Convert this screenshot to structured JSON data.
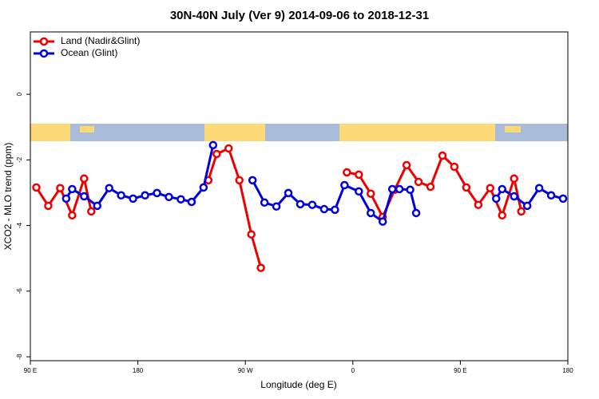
{
  "chart_data": {
    "type": "line",
    "title": "30N-40N July (Ver 9)   2014-09-06 to 2018-12-31",
    "x_label": "Longitude (deg E)",
    "y_label": "XCO2 - MLO trend (ppm)",
    "xlim": [
      90,
      540
    ],
    "ylim": [
      -8.12,
      1.9
    ],
    "xticks": [
      {
        "value": 90,
        "label": "90 E"
      },
      {
        "value": 180,
        "label": "180"
      },
      {
        "value": 270,
        "label": "90 W"
      },
      {
        "value": 360,
        "label": "0"
      },
      {
        "value": 450,
        "label": "90 E"
      },
      {
        "value": 540,
        "label": "180"
      }
    ],
    "yticks": [
      0,
      -2,
      -4,
      -6,
      -8
    ],
    "legend": "top-left",
    "series": [
      {
        "name": "Land (Nadir&Glint)",
        "color": "#ee0000",
        "x": [
          95,
          105,
          115,
          125,
          135,
          141,
          null,
          239,
          246,
          256,
          265,
          275,
          283,
          null,
          355,
          365,
          375,
          385,
          395,
          405,
          415,
          425,
          435,
          445,
          455,
          465,
          475,
          485,
          495,
          501
        ],
        "values": [
          -2.84,
          -3.4,
          -2.86,
          -3.69,
          -2.57,
          -3.57,
          null,
          -2.62,
          -1.82,
          -1.65,
          -2.62,
          -4.27,
          -5.29,
          null,
          -2.38,
          -2.45,
          -3.03,
          -3.74,
          -2.91,
          -2.16,
          -2.67,
          -2.82,
          -1.87,
          -2.21,
          -2.84,
          -3.37,
          -2.86,
          -3.69,
          -2.57,
          -3.57
        ]
      },
      {
        "name": "Ocean (Glint)",
        "color": "#0000dd",
        "x": [
          120,
          125,
          135,
          146,
          156,
          166,
          176,
          186,
          196,
          206,
          216,
          225,
          235,
          243,
          null,
          276,
          286,
          296,
          306,
          316,
          326,
          336,
          345,
          353,
          365,
          375,
          385,
          393,
          399,
          408,
          413,
          null,
          480,
          485,
          495,
          506,
          516,
          526,
          536
        ],
        "values": [
          -3.18,
          -2.89,
          -3.11,
          -3.4,
          -2.86,
          -3.08,
          -3.18,
          -3.08,
          -3.01,
          -3.13,
          -3.2,
          -3.28,
          -2.84,
          -1.55,
          null,
          -2.62,
          -3.3,
          -3.42,
          -3.01,
          -3.35,
          -3.37,
          -3.5,
          -3.52,
          -2.77,
          -2.96,
          -3.62,
          -3.88,
          -2.89,
          -2.89,
          -2.91,
          -3.62,
          null,
          -3.18,
          -2.89,
          -3.11,
          -3.4,
          -2.86,
          -3.08,
          -3.18
        ]
      }
    ]
  }
}
